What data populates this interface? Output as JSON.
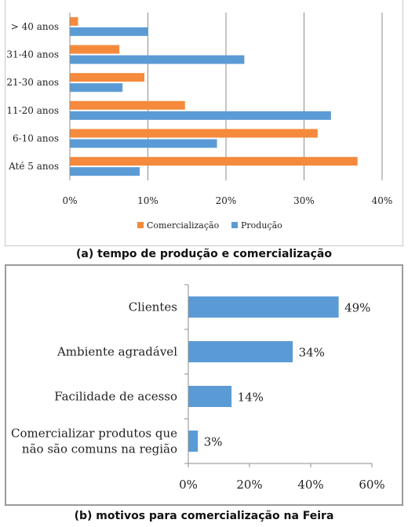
{
  "captions": {
    "a": "(a) tempo de produção e comercialização",
    "b": "(b) motivos para comercialização na Feira"
  },
  "chart_data": [
    {
      "type": "bar",
      "orientation": "horizontal",
      "categories": [
        "> 40 anos",
        "31-40 anos",
        "21-30 anos",
        "11-20 anos",
        "6-10 anos",
        "Até 5 anos"
      ],
      "series": [
        {
          "name": "Comercialização",
          "color": "#f58a3c",
          "values": [
            1,
            6.3,
            9.5,
            14.7,
            31.7,
            36.8
          ]
        },
        {
          "name": "Produção",
          "color": "#5b9bd5",
          "values": [
            10,
            22.3,
            6.7,
            33.4,
            18.8,
            8.9
          ]
        }
      ],
      "xlim": [
        0,
        40
      ],
      "xticks": [
        "0%",
        "10%",
        "20%",
        "30%",
        "40%"
      ],
      "grid": true,
      "legend": "bottom"
    },
    {
      "type": "bar",
      "orientation": "horizontal",
      "categories": [
        "Clientes",
        "Ambiente agradável",
        "Facilidade de acesso",
        "Comercializar produtos que não são comuns na região"
      ],
      "category_lines": [
        [
          "Clientes"
        ],
        [
          "Ambiente agradável"
        ],
        [
          "Facilidade de acesso"
        ],
        [
          "Comercializar produtos que",
          "não são comuns na região"
        ]
      ],
      "series": [
        {
          "color": "#5b9bd5",
          "values": [
            49,
            34,
            14,
            3
          ],
          "labels": [
            "49%",
            "34%",
            "14%",
            "3%"
          ]
        }
      ],
      "xlim": [
        0,
        60
      ],
      "xticks": [
        "0%",
        "20%",
        "40%",
        "60%"
      ],
      "grid": false
    }
  ]
}
